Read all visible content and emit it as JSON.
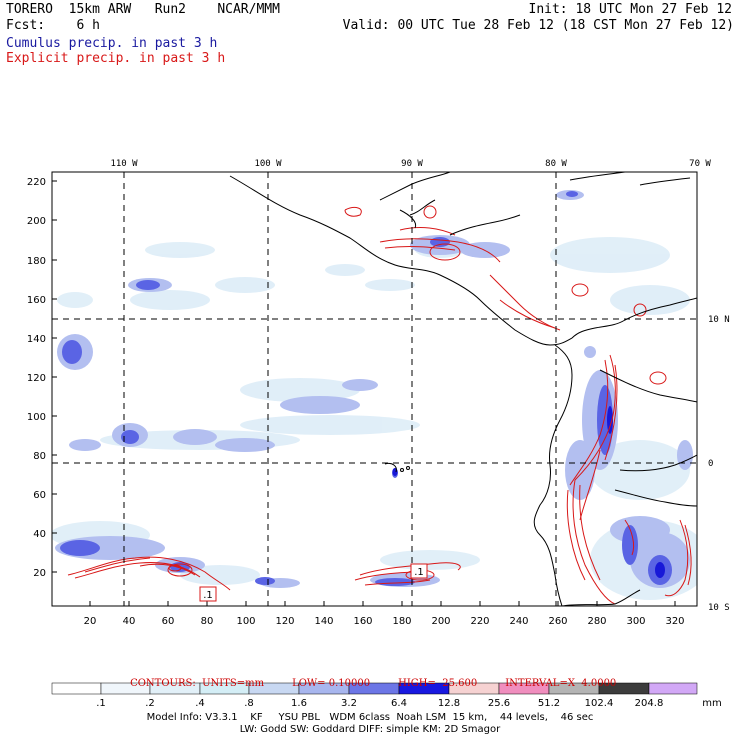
{
  "header": {
    "model": "TORERO  15km ARW   Run2    NCAR/MMM",
    "init": "Init: 18 UTC Mon 27 Feb 12",
    "fcst": "Fcst:    6 h",
    "valid": "Valid: 00 UTC Tue 28 Feb 12 (18 CST Mon 27 Feb 12)",
    "field1": "Cumulus precip. in past 3 h",
    "field2": "Explicit precip. in past 3 h",
    "field1_color": "#1a1aa0",
    "field2_color": "#d81818"
  },
  "map": {
    "lon_labels": [
      "110 W",
      "100 W",
      "90 W",
      "80 W",
      "70 W"
    ],
    "lat_labels": [
      "10 N",
      "0",
      "10 S"
    ],
    "y_ticks": [
      "220",
      "200",
      "180",
      "160",
      "140",
      "120",
      "100",
      "80",
      "60",
      "40",
      "20"
    ],
    "x_ticks": [
      "20",
      "40",
      "60",
      "80",
      "100",
      "120",
      "140",
      "160",
      "180",
      "200",
      "220",
      "240",
      "260",
      "280",
      "300",
      "320"
    ],
    "box_labels": [
      ".1",
      ".1"
    ]
  },
  "contours": {
    "units": "CONTOURS:  UNITS=mm",
    "low": "LOW= 0.10000",
    "high": "HIGH=  25.600",
    "interval": "INTERVAL=X  4.0000"
  },
  "legend": {
    "labels": [
      ".1",
      ".2",
      ".4",
      ".8",
      "1.6",
      "3.2",
      "6.4",
      "12.8",
      "25.6",
      "51.2",
      "102.4",
      "204.8"
    ],
    "unit": "mm",
    "colors": [
      "#ffffff",
      "#f0f6fb",
      "#e2f0f8",
      "#d4eef6",
      "#c8d8f2",
      "#a8b6ee",
      "#6c76e6",
      "#5058e0",
      "#1818e0",
      "#f6d2d2",
      "#f08ebe",
      "#b4b4b4",
      "#3c3c3c",
      "#d2a8f6"
    ]
  },
  "footer": {
    "line1": "Model Info: V3.3.1    KF     YSU PBL   WDM 6class  Noah LSM  15 km,    44 levels,    46 sec",
    "line2": "LW: Godd SW: Goddard DIFF: simple KM: 2D Smagor"
  }
}
